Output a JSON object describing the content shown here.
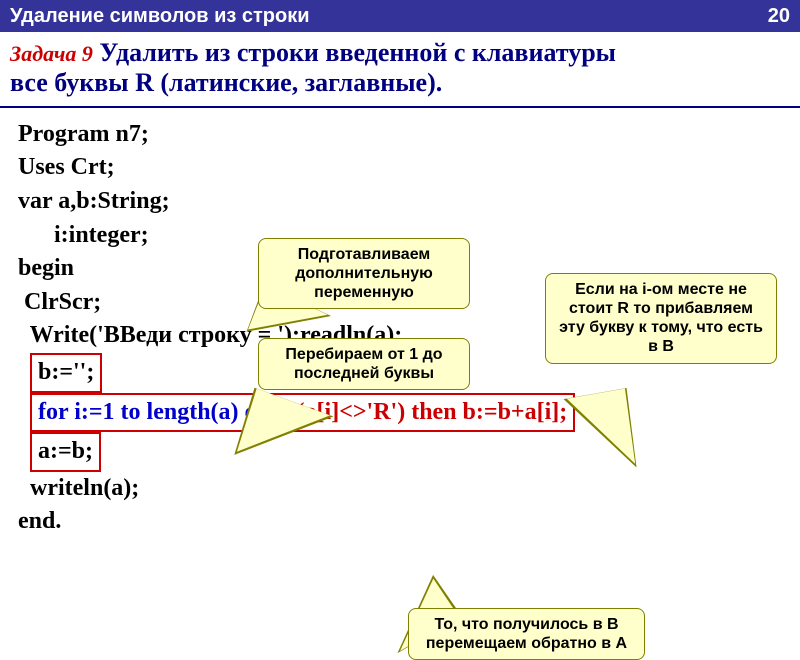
{
  "header": {
    "title": "Удаление символов из строки",
    "page": "20"
  },
  "task": {
    "label": "Задача 9",
    "text_line1": " Удалить из строки введенной с клавиатуры",
    "text_line2": "все буквы R (латинские, заглавные)."
  },
  "code": {
    "l1": "Program n7;",
    "l2": "Uses Crt;",
    "l3": "var a,b:String;",
    "l4": "      i:integer;",
    "l5": "begin",
    "l6": " ClrScr;",
    "l7": "  Write('ВВеди строку = ');readln(a);",
    "l8_pre": "  ",
    "l8_box": "b:='';",
    "l9_pre": "  ",
    "l9_for": "for i:=1 to length(a) do",
    "l9_if": " if (a[i]<>'R') then b:=b+a[i];",
    "l10_pre": "  ",
    "l10_box": "a:=b;",
    "l11": "  writeln(a);",
    "l12": "end."
  },
  "callouts": {
    "c1": "Подготавливаем дополнительную переменную",
    "c2": "Перебираем от 1 до последней буквы",
    "c3": "Если на i-ом месте не стоит R то прибавляем эту букву к тому, что есть в B",
    "c4": "То, что получилось в В перемещаем обратно в A"
  },
  "colors": {
    "header_bg": "#333399",
    "header_text": "#ffffff",
    "task_label": "#cc0000",
    "task_text": "#000080",
    "callout_bg": "#ffffcc",
    "callout_border": "#808000",
    "box_border": "#cc0000",
    "for_color": "#0000cc",
    "if_color": "#cc0000"
  }
}
